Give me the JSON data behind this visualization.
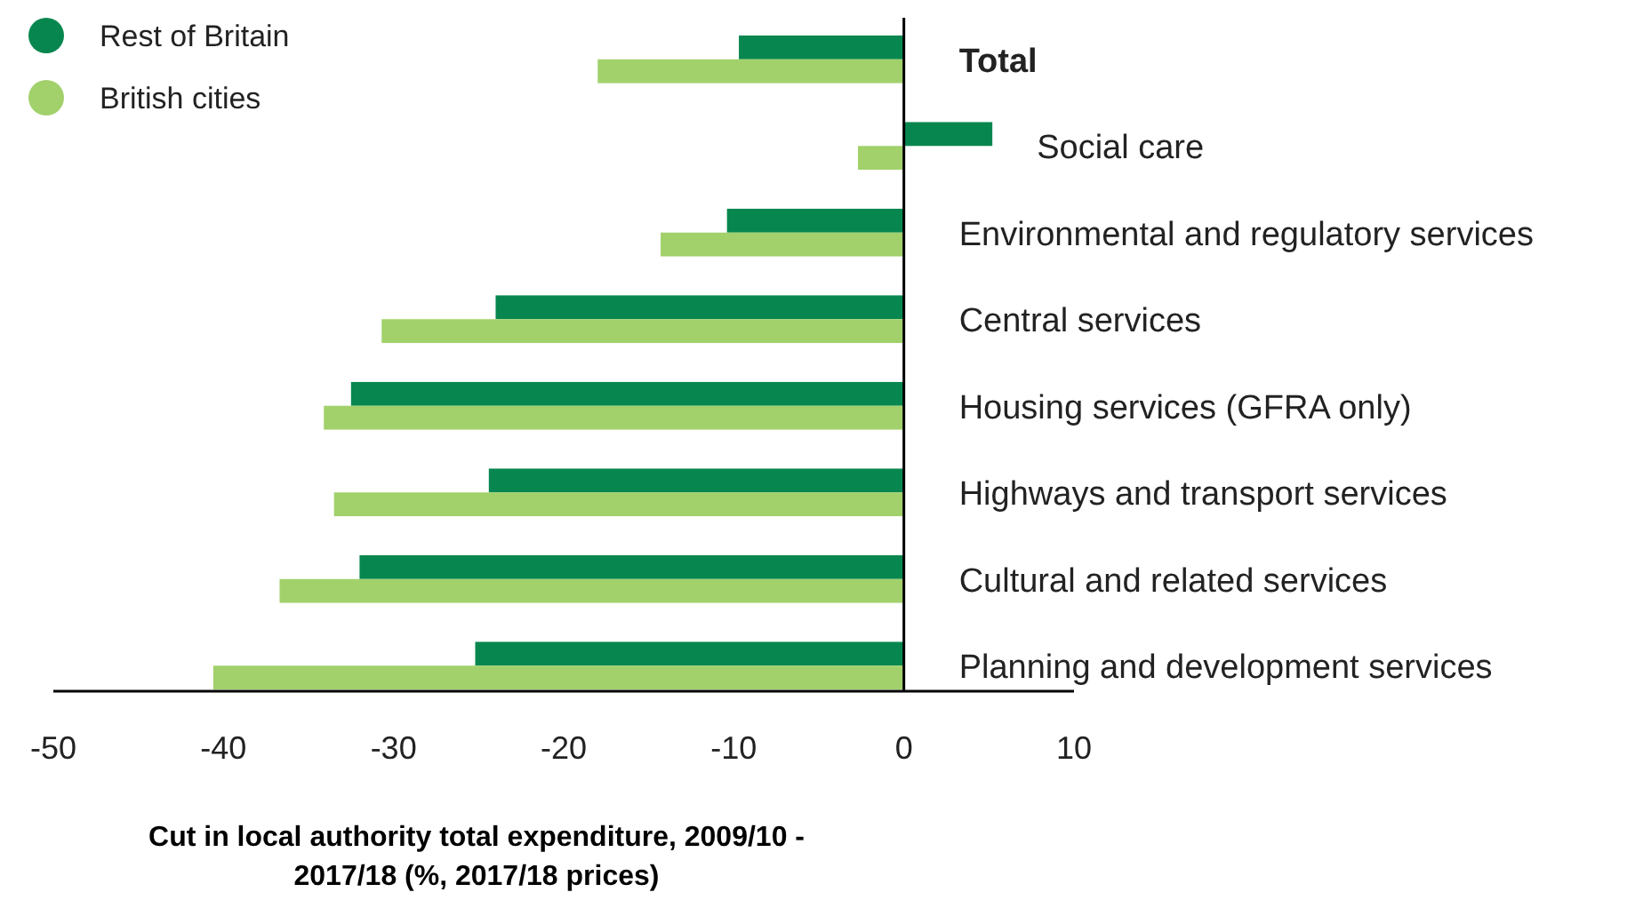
{
  "chart_data": {
    "type": "bar",
    "orientation": "horizontal",
    "xlabel": "Cut in local authority total expenditure, 2009/10 - 2017/18 (%, 2017/18 prices)",
    "categories": [
      "Total",
      "Social care",
      "Environmental and regulatory services",
      "Central services",
      "Housing services (GFRA only)",
      "Highways and transport services",
      "Cultural and related services",
      "Planning and development services"
    ],
    "series": [
      {
        "name": "Rest of Britain",
        "color": "#07874f",
        "values": [
          -9.7,
          5.2,
          -10.4,
          -24.0,
          -32.5,
          -24.4,
          -32.0,
          -25.2
        ]
      },
      {
        "name": "British cities",
        "color": "#a2d16c",
        "values": [
          -18.0,
          -2.7,
          -14.3,
          -30.7,
          -34.1,
          -33.5,
          -36.7,
          -40.6
        ]
      }
    ],
    "xlim": [
      -50,
      10
    ],
    "xticks": [
      -50,
      -40,
      -30,
      -20,
      -10,
      0,
      10
    ],
    "grid": false,
    "legend": "top left"
  }
}
